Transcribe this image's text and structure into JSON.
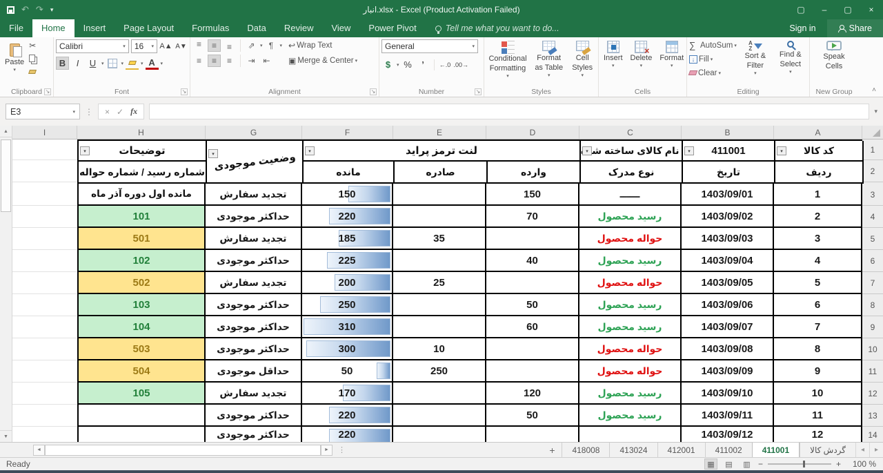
{
  "icons": {
    "undo": "↶",
    "redo": "↷",
    "qat_more": "▾",
    "ribbon_display": "▢",
    "minimize": "–",
    "restore": "▢",
    "close": "×",
    "dropdown": "▾",
    "scissors": "✂",
    "up_a": "A▲",
    "down_a": "A▼",
    "bold": "B",
    "italic": "I",
    "underline": "U",
    "align": "≡",
    "orient": "⇗",
    "para": "¶",
    "indent_r": "⇥",
    "indent_l": "⇤",
    "wrap": "↩",
    "merge": "▣",
    "dollar": "$",
    "percent": "%",
    "comma": "’",
    "dec_inc": "←.0",
    "dec_dec": ".00→",
    "launcher": "↘",
    "sum": "∑",
    "fill_arrow": "↓",
    "sort_a": "A",
    "sort_z": "Z",
    "cancel": "×",
    "enter": "✓",
    "fx": "fx",
    "scroll_up": "▲",
    "scroll_down": "▼",
    "scroll_left": "◄",
    "scroll_right": "►",
    "dots": "⋮",
    "collapse": "˄",
    "add_sheet": "+",
    "nav_left": "◂",
    "nav_right": "▸",
    "view_normal": "▦",
    "view_layout": "▤",
    "view_break": "▥",
    "zoom_minus": "−",
    "zoom_plus": "+"
  },
  "titlebar": {
    "title": "انبار.xlsx - Excel (Product Activation Failed)",
    "signin": "Sign in",
    "share": "Share"
  },
  "tabs": [
    "File",
    "Home",
    "Insert",
    "Page Layout",
    "Formulas",
    "Data",
    "Review",
    "View",
    "Power Pivot"
  ],
  "active_tab": "Home",
  "tellme": "Tell me what you want to do...",
  "ribbon": {
    "clipboard": {
      "label": "Clipboard",
      "paste": "Paste"
    },
    "font": {
      "label": "Font",
      "family": "Calibri",
      "size": "16"
    },
    "alignment": {
      "label": "Alignment",
      "wrap": "Wrap Text",
      "merge": "Merge & Center"
    },
    "number": {
      "label": "Number",
      "format": "General"
    },
    "styles": {
      "label": "Styles",
      "conditional": "Conditional Formatting",
      "format_table": "Format as Table",
      "cell_styles": "Cell Styles"
    },
    "cells": {
      "label": "Cells",
      "insert": "Insert",
      "delete": "Delete",
      "format": "Format"
    },
    "editing": {
      "label": "Editing",
      "autosum": "AutoSum",
      "fill": "Fill",
      "clear": "Clear",
      "sort": "Sort & Filter",
      "find": "Find & Select"
    },
    "newgroup": {
      "label": "New Group",
      "speak": "Speak Cells"
    }
  },
  "formulabar": {
    "namebox": "E3",
    "formula": ""
  },
  "grid": {
    "column_letters": [
      "I",
      "H",
      "G",
      "F",
      "E",
      "D",
      "C",
      "B",
      "A"
    ],
    "top_row_numbers": [
      "1",
      "2"
    ],
    "headers": {
      "h1": "توضیحات",
      "h2": "شماره رسید / شماره حواله",
      "g": "وضعیت موجودی",
      "def": "لنت ترمز پراید",
      "f2": "مانده",
      "e2": "صادره",
      "d2": "وارده",
      "c1": "نام کالای ساخته شده",
      "c2": "نوع مدرک",
      "b1": "411001",
      "b2": "تاریخ",
      "a1": "کد کالا",
      "a2": "ردیف"
    },
    "f_max": 310,
    "rows": [
      {
        "n": "3",
        "a": "1",
        "b": "1403/09/01",
        "c": "ــــــ",
        "c_style": "black",
        "d": "150",
        "e": "",
        "f": 150,
        "g": "تجدید سفارش",
        "h": "مانده اول دوره آذر ماه",
        "h_style": "plain"
      },
      {
        "n": "4",
        "a": "2",
        "b": "1403/09/02",
        "c": "رسید محصول",
        "c_style": "green",
        "d": "70",
        "e": "",
        "f": 220,
        "g": "حداکثر موجودی",
        "h": "101",
        "h_style": "green"
      },
      {
        "n": "5",
        "a": "3",
        "b": "1403/09/03",
        "c": "حواله محصول",
        "c_style": "red",
        "d": "",
        "e": "35",
        "f": 185,
        "g": "تجدید سفارش",
        "h": "501",
        "h_style": "yellow"
      },
      {
        "n": "6",
        "a": "4",
        "b": "1403/09/04",
        "c": "رسید محصول",
        "c_style": "green",
        "d": "40",
        "e": "",
        "f": 225,
        "g": "حداکثر موجودی",
        "h": "102",
        "h_style": "green"
      },
      {
        "n": "7",
        "a": "5",
        "b": "1403/09/05",
        "c": "حواله محصول",
        "c_style": "red",
        "d": "",
        "e": "25",
        "f": 200,
        "g": "تجدید سفارش",
        "h": "502",
        "h_style": "yellow"
      },
      {
        "n": "8",
        "a": "6",
        "b": "1403/09/06",
        "c": "رسید محصول",
        "c_style": "green",
        "d": "50",
        "e": "",
        "f": 250,
        "g": "حداکثر موجودی",
        "h": "103",
        "h_style": "green"
      },
      {
        "n": "9",
        "a": "7",
        "b": "1403/09/07",
        "c": "رسید محصول",
        "c_style": "green",
        "d": "60",
        "e": "",
        "f": 310,
        "g": "حداکثر موجودی",
        "h": "104",
        "h_style": "green"
      },
      {
        "n": "10",
        "a": "8",
        "b": "1403/09/08",
        "c": "حواله محصول",
        "c_style": "red",
        "d": "",
        "e": "10",
        "f": 300,
        "g": "حداکثر موجودی",
        "h": "503",
        "h_style": "yellow"
      },
      {
        "n": "11",
        "a": "9",
        "b": "1403/09/09",
        "c": "حواله محصول",
        "c_style": "red",
        "d": "",
        "e": "250",
        "f": 50,
        "g": "حداقل موجودی",
        "h": "504",
        "h_style": "yellow"
      },
      {
        "n": "12",
        "a": "10",
        "b": "1403/09/10",
        "c": "رسید محصول",
        "c_style": "green",
        "d": "120",
        "e": "",
        "f": 170,
        "g": "تجدید سفارش",
        "h": "105",
        "h_style": "green"
      },
      {
        "n": "13",
        "a": "11",
        "b": "1403/09/11",
        "c": "رسید محصول",
        "c_style": "green",
        "d": "50",
        "e": "",
        "f": 220,
        "g": "حداکثر موجودی",
        "h": "",
        "h_style": "plain"
      },
      {
        "n": "14",
        "a": "12",
        "b": "1403/09/12",
        "c": "",
        "c_style": "black",
        "d": "",
        "e": "",
        "f": 220,
        "g": "حداکثر موجودی",
        "h": "",
        "h_style": "plain",
        "partial": true
      }
    ]
  },
  "sheetbar": {
    "tabs": [
      "418008",
      "413024",
      "412001",
      "411002",
      "411001",
      "گردش کالا"
    ],
    "active_index": 4
  },
  "statusbar": {
    "ready": "Ready",
    "zoom": "100 %"
  }
}
